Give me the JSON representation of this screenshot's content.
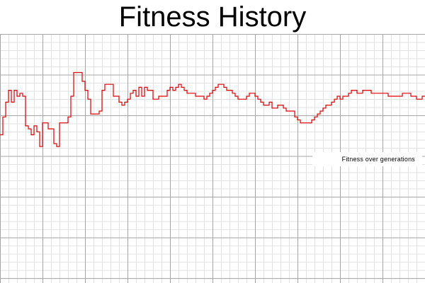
{
  "title": "Fitness History",
  "chart_data": {
    "type": "line",
    "title": "Fitness History",
    "xlabel": "",
    "ylabel": "",
    "grid": true,
    "legend_position": "right",
    "x": [
      0,
      2,
      4,
      6,
      8,
      10,
      12,
      14,
      16,
      18,
      20,
      22,
      24,
      26,
      28,
      30,
      32,
      34,
      36,
      38,
      40,
      42,
      44,
      46,
      48,
      50,
      52,
      54,
      56,
      58,
      60,
      62,
      64,
      66,
      68,
      70,
      72,
      74,
      76,
      78,
      80,
      82,
      84,
      86,
      88,
      90,
      92,
      94,
      96,
      98,
      100,
      102,
      104,
      106,
      108,
      110,
      112,
      114,
      116,
      118,
      120,
      122,
      124,
      126,
      128,
      130,
      132,
      134,
      136,
      138,
      140,
      142,
      144,
      146,
      148,
      150,
      152,
      154,
      156,
      158,
      160,
      162,
      164,
      166,
      168,
      170,
      172,
      174,
      176,
      178,
      180,
      182,
      184,
      186,
      188,
      190,
      192,
      194,
      196,
      198,
      200,
      202,
      204,
      206,
      208,
      210,
      212,
      214,
      216,
      218,
      220,
      222,
      224,
      226,
      228,
      230,
      232,
      234,
      236,
      238,
      240,
      242,
      244,
      246,
      248,
      250,
      252,
      254,
      256,
      258,
      260,
      262,
      264,
      266,
      268,
      270,
      272,
      274,
      276,
      278,
      280,
      282,
      284,
      286,
      288,
      290,
      292,
      294,
      296,
      298
    ],
    "series": [
      {
        "name": "Fitness over generations",
        "color": "#e00000",
        "values": [
          1.6,
          2.2,
          2.7,
          3.1,
          2.7,
          3.1,
          2.9,
          3.0,
          2.9,
          1.9,
          1.8,
          1.6,
          1.9,
          1.7,
          1.2,
          2.0,
          2.0,
          1.8,
          1.8,
          1.3,
          1.2,
          2.0,
          2.0,
          2.0,
          2.2,
          2.9,
          3.7,
          3.7,
          3.7,
          3.4,
          3.1,
          2.8,
          2.3,
          2.3,
          2.3,
          2.4,
          3.1,
          3.3,
          3.3,
          3.3,
          2.9,
          2.9,
          2.7,
          2.6,
          2.7,
          2.8,
          3.0,
          3.1,
          2.9,
          3.2,
          2.9,
          3.2,
          3.1,
          3.1,
          2.8,
          2.8,
          2.9,
          2.9,
          2.9,
          3.1,
          3.2,
          3.1,
          3.2,
          3.3,
          3.2,
          3.1,
          3.0,
          3.0,
          3.0,
          2.9,
          2.9,
          2.9,
          2.8,
          2.9,
          3.0,
          3.1,
          3.2,
          3.3,
          3.3,
          3.2,
          3.1,
          3.1,
          3.0,
          2.9,
          2.8,
          2.8,
          2.8,
          2.9,
          3.0,
          3.0,
          2.9,
          2.8,
          2.7,
          2.6,
          2.6,
          2.7,
          2.5,
          2.5,
          2.6,
          2.6,
          2.5,
          2.4,
          2.4,
          2.4,
          2.2,
          2.1,
          2.0,
          2.0,
          2.0,
          2.0,
          2.1,
          2.2,
          2.3,
          2.4,
          2.5,
          2.6,
          2.6,
          2.7,
          2.8,
          2.9,
          2.8,
          2.9,
          2.9,
          3.0,
          3.1,
          3.1,
          3.0,
          3.0,
          3.1,
          3.1,
          3.1,
          3.0,
          3.0,
          3.0,
          3.0,
          3.0,
          3.0,
          2.9,
          2.9,
          2.9,
          2.9,
          2.9,
          3.0,
          3.0,
          3.0,
          2.9,
          2.9,
          2.8,
          2.8,
          2.9
        ]
      }
    ],
    "xlim": [
      0,
      300
    ],
    "ylim": [
      -3.4,
      5.0
    ]
  }
}
